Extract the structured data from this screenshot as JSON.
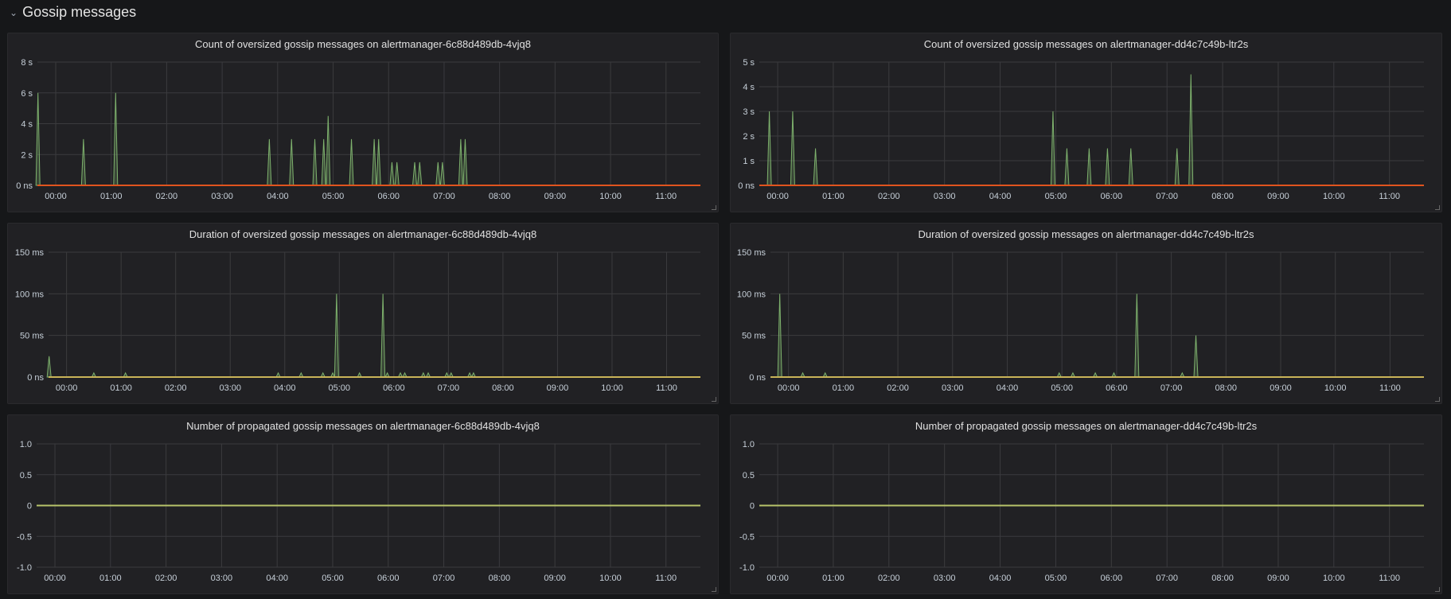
{
  "row": {
    "title": "Gossip messages",
    "collapse_icon": "chevron-down-icon"
  },
  "colors": {
    "series": "#7eb26d",
    "count_zero": "#e0541e",
    "duration_zero": "#c9b458",
    "propagated_zero": "#b7c46a",
    "grid": "#3b3b3e"
  },
  "x_ticks": [
    "00:00",
    "01:00",
    "02:00",
    "03:00",
    "04:00",
    "05:00",
    "06:00",
    "07:00",
    "08:00",
    "09:00",
    "10:00",
    "11:00"
  ],
  "chart_data": [
    {
      "type": "line",
      "title": "Count of oversized gossip messages on alertmanager-6c88d489db-4vjq8",
      "xlabel": "time",
      "ylabel": "",
      "xlim_hours": [
        -0.33,
        11.62
      ],
      "ylim": [
        0,
        8
      ],
      "y_ticks": [
        {
          "v": 0,
          "label": "0 ns"
        },
        {
          "v": 2,
          "label": "2 s"
        },
        {
          "v": 4,
          "label": "4 s"
        },
        {
          "v": 6,
          "label": "6 s"
        },
        {
          "v": 8,
          "label": "8 s"
        }
      ],
      "spikes": [
        [
          -0.32,
          6
        ],
        [
          0.5,
          3
        ],
        [
          1.08,
          6
        ],
        [
          3.85,
          3
        ],
        [
          4.25,
          3
        ],
        [
          4.67,
          3
        ],
        [
          4.83,
          3
        ],
        [
          4.91,
          4.5
        ],
        [
          5.33,
          3
        ],
        [
          5.74,
          3
        ],
        [
          5.82,
          3
        ],
        [
          6.06,
          1.5
        ],
        [
          6.15,
          1.5
        ],
        [
          6.47,
          1.5
        ],
        [
          6.56,
          1.5
        ],
        [
          6.89,
          1.5
        ],
        [
          6.97,
          1.5
        ],
        [
          7.3,
          3
        ],
        [
          7.38,
          3
        ]
      ],
      "zero_series": "count_zero"
    },
    {
      "type": "line",
      "title": "Count of oversized gossip messages on alertmanager-dd4c7c49b-ltr2s",
      "xlabel": "time",
      "ylabel": "",
      "xlim_hours": [
        -0.33,
        11.62
      ],
      "ylim": [
        0,
        5
      ],
      "y_ticks": [
        {
          "v": 0,
          "label": "0 ns"
        },
        {
          "v": 1,
          "label": "1 s"
        },
        {
          "v": 2,
          "label": "2 s"
        },
        {
          "v": 3,
          "label": "3 s"
        },
        {
          "v": 4,
          "label": "4 s"
        },
        {
          "v": 5,
          "label": "5 s"
        }
      ],
      "spikes": [
        [
          -0.15,
          3
        ],
        [
          0.27,
          3
        ],
        [
          0.68,
          1.5
        ],
        [
          4.95,
          3
        ],
        [
          5.2,
          1.5
        ],
        [
          5.6,
          1.5
        ],
        [
          5.93,
          1.5
        ],
        [
          6.35,
          1.5
        ],
        [
          7.18,
          1.5
        ],
        [
          7.43,
          4.5
        ]
      ],
      "zero_series": "count_zero"
    },
    {
      "type": "line",
      "title": "Duration of oversized gossip messages on alertmanager-6c88d489db-4vjq8",
      "xlabel": "time",
      "ylabel": "",
      "xlim_hours": [
        -0.33,
        11.62
      ],
      "ylim": [
        0,
        150
      ],
      "y_ticks": [
        {
          "v": 0,
          "label": "0 ns"
        },
        {
          "v": 50,
          "label": "50 ms"
        },
        {
          "v": 100,
          "label": "100 ms"
        },
        {
          "v": 150,
          "label": "150 ms"
        }
      ],
      "spikes": [
        [
          -0.32,
          25
        ],
        [
          0.5,
          5
        ],
        [
          1.08,
          5
        ],
        [
          3.88,
          5
        ],
        [
          4.3,
          5
        ],
        [
          4.7,
          5
        ],
        [
          4.88,
          5
        ],
        [
          4.95,
          100
        ],
        [
          5.37,
          5
        ],
        [
          5.8,
          100
        ],
        [
          5.88,
          5
        ],
        [
          6.12,
          5
        ],
        [
          6.2,
          5
        ],
        [
          6.54,
          5
        ],
        [
          6.63,
          5
        ],
        [
          6.97,
          5
        ],
        [
          7.05,
          5
        ],
        [
          7.39,
          5
        ],
        [
          7.46,
          5
        ]
      ],
      "zero_series": "duration_zero"
    },
    {
      "type": "line",
      "title": "Duration of oversized gossip messages on alertmanager-dd4c7c49b-ltr2s",
      "xlabel": "time",
      "ylabel": "",
      "xlim_hours": [
        -0.33,
        11.62
      ],
      "ylim": [
        0,
        150
      ],
      "y_ticks": [
        {
          "v": 0,
          "label": "0 ns"
        },
        {
          "v": 50,
          "label": "50 ms"
        },
        {
          "v": 100,
          "label": "100 ms"
        },
        {
          "v": 150,
          "label": "150 ms"
        }
      ],
      "spikes": [
        [
          -0.16,
          100
        ],
        [
          0.26,
          5
        ],
        [
          0.67,
          5
        ],
        [
          4.95,
          5
        ],
        [
          5.2,
          5
        ],
        [
          5.61,
          5
        ],
        [
          5.95,
          5
        ],
        [
          6.37,
          100
        ],
        [
          7.2,
          5
        ],
        [
          7.45,
          50
        ]
      ],
      "zero_series": "duration_zero"
    },
    {
      "type": "line",
      "title": "Number of propagated gossip messages on alertmanager-6c88d489db-4vjq8",
      "xlabel": "time",
      "ylabel": "",
      "xlim_hours": [
        -0.33,
        11.62
      ],
      "ylim": [
        -1,
        1
      ],
      "y_ticks": [
        {
          "v": -1,
          "label": "-1.0"
        },
        {
          "v": -0.5,
          "label": "-0.5"
        },
        {
          "v": 0,
          "label": "0"
        },
        {
          "v": 0.5,
          "label": "0.5"
        },
        {
          "v": 1,
          "label": "1.0"
        }
      ],
      "spikes": [],
      "zero_series": "propagated_zero"
    },
    {
      "type": "line",
      "title": "Number of propagated gossip messages on alertmanager-dd4c7c49b-ltr2s",
      "xlabel": "time",
      "ylabel": "",
      "xlim_hours": [
        -0.33,
        11.62
      ],
      "ylim": [
        -1,
        1
      ],
      "y_ticks": [
        {
          "v": -1,
          "label": "-1.0"
        },
        {
          "v": -0.5,
          "label": "-0.5"
        },
        {
          "v": 0,
          "label": "0"
        },
        {
          "v": 0.5,
          "label": "0.5"
        },
        {
          "v": 1,
          "label": "1.0"
        }
      ],
      "spikes": [],
      "zero_series": "propagated_zero"
    }
  ]
}
